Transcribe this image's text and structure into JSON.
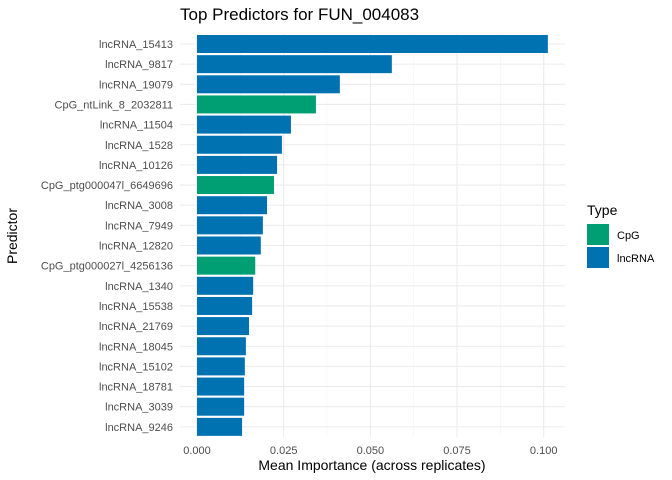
{
  "chart_data": {
    "type": "bar",
    "orientation": "horizontal",
    "title": "Top Predictors for FUN_004083",
    "xlabel": "Mean Importance (across replicates)",
    "ylabel": "Predictor",
    "xlim": [
      0,
      0.105
    ],
    "xticks": [
      0,
      0.025,
      0.05,
      0.075,
      0.1
    ],
    "xtick_labels": [
      "0.000",
      "0.025",
      "0.050",
      "0.075",
      "0.100"
    ],
    "grid": true,
    "legend": {
      "title": "Type",
      "placement": "right",
      "entries": [
        {
          "label": "CpG",
          "color": "#009E73"
        },
        {
          "label": "lncRNA",
          "color": "#0072B2"
        }
      ]
    },
    "categories": [
      "lncRNA_15413",
      "lncRNA_9817",
      "lncRNA_19079",
      "CpG_ntLink_8_2032811",
      "lncRNA_11504",
      "lncRNA_1528",
      "lncRNA_10126",
      "CpG_ptg000047l_6649696",
      "lncRNA_3008",
      "lncRNA_7949",
      "lncRNA_12820",
      "CpG_ptg000027l_4256136",
      "lncRNA_1340",
      "lncRNA_15538",
      "lncRNA_21769",
      "lncRNA_18045",
      "lncRNA_15102",
      "lncRNA_18781",
      "lncRNA_3039",
      "lncRNA_9246"
    ],
    "types": [
      "lncRNA",
      "lncRNA",
      "lncRNA",
      "CpG",
      "lncRNA",
      "lncRNA",
      "lncRNA",
      "CpG",
      "lncRNA",
      "lncRNA",
      "lncRNA",
      "CpG",
      "lncRNA",
      "lncRNA",
      "lncRNA",
      "lncRNA",
      "lncRNA",
      "lncRNA",
      "lncRNA",
      "lncRNA"
    ],
    "values": [
      0.1012,
      0.0562,
      0.0412,
      0.0343,
      0.0271,
      0.0245,
      0.0231,
      0.0222,
      0.0202,
      0.019,
      0.0184,
      0.0168,
      0.0162,
      0.0159,
      0.015,
      0.0141,
      0.0138,
      0.0136,
      0.0136,
      0.013
    ]
  }
}
